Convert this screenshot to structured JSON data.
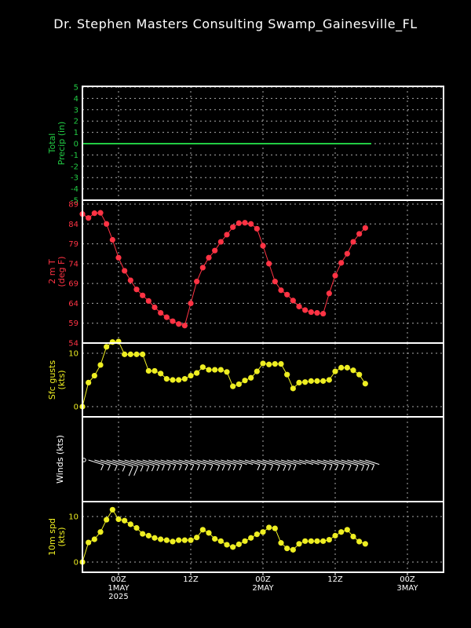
{
  "title": "Dr. Stephen Masters Consulting  Swamp_Gainesville_FL",
  "colors": {
    "precip": "#22cc44",
    "temp": "#ff3344",
    "gust": "#eeee22",
    "wind": "#ffffff",
    "spd": "#eeee22"
  },
  "x_axis": {
    "tick_labels": [
      {
        "t": 6,
        "lines": [
          "00Z",
          "1MAY",
          "2025"
        ]
      },
      {
        "t": 18,
        "lines": [
          "12Z"
        ]
      },
      {
        "t": 30,
        "lines": [
          "00Z",
          "2MAY"
        ]
      },
      {
        "t": 42,
        "lines": [
          "12Z"
        ]
      },
      {
        "t": 54,
        "lines": [
          "00Z",
          "3MAY"
        ]
      }
    ],
    "range": [
      0,
      60
    ]
  },
  "chart_data": [
    {
      "type": "line",
      "id": "precip",
      "ylabel": [
        "Total",
        "Precip (in)"
      ],
      "ylim": [
        -5,
        5
      ],
      "yticks": [
        "5",
        "4",
        "3",
        "2",
        "1",
        "0",
        "-1",
        "-2",
        "-3",
        "-4",
        "-5"
      ],
      "grid": true,
      "x": [
        0,
        48
      ],
      "values": [
        0,
        0
      ]
    },
    {
      "type": "line",
      "id": "temp",
      "ylabel": [
        "2 m T",
        "(deg F)"
      ],
      "ylim": [
        54,
        89
      ],
      "yticks": [
        "89",
        "84",
        "79",
        "74",
        "69",
        "64",
        "59",
        "54"
      ],
      "grid": true,
      "x": [
        0,
        1,
        2,
        3,
        4,
        5,
        6,
        7,
        8,
        9,
        10,
        11,
        12,
        13,
        14,
        15,
        16,
        17,
        18,
        19,
        20,
        21,
        22,
        23,
        24,
        25,
        26,
        27,
        28,
        29,
        30,
        31,
        32,
        33,
        34,
        35,
        36,
        37,
        38,
        39,
        40,
        41,
        42,
        43,
        44,
        45,
        46,
        47
      ],
      "values": [
        86.5,
        85.5,
        86.7,
        86.8,
        84,
        80,
        75.5,
        72.2,
        69.8,
        67.5,
        66,
        64.6,
        63,
        61.6,
        60.5,
        59.5,
        58.8,
        58.4,
        64,
        69.5,
        73,
        75.5,
        77.3,
        79.5,
        81.3,
        83.2,
        84.2,
        84.3,
        84,
        82.8,
        78.5,
        74,
        69.5,
        67.3,
        66.2,
        64.7,
        63.2,
        62.3,
        61.8,
        61.6,
        61.4,
        66.5,
        71,
        74.2,
        76.5,
        79.5,
        81.5,
        83
      ]
    },
    {
      "type": "line",
      "id": "gust",
      "ylabel": [
        "Sfc gusts",
        "(kts)"
      ],
      "ylim": [
        0,
        12
      ],
      "yticks": [
        "10",
        "0"
      ],
      "grid": true,
      "x": [
        0,
        1,
        2,
        3,
        4,
        5,
        6,
        7,
        8,
        9,
        10,
        11,
        12,
        13,
        14,
        15,
        16,
        17,
        18,
        19,
        20,
        21,
        22,
        23,
        24,
        25,
        26,
        27,
        28,
        29,
        30,
        31,
        32,
        33,
        34,
        35,
        36,
        37,
        38,
        39,
        40,
        41,
        42,
        43,
        44,
        45,
        46,
        47
      ],
      "values": [
        0,
        4.5,
        5.8,
        7.8,
        11.2,
        12.1,
        12.2,
        9.8,
        9.8,
        9.8,
        9.8,
        6.7,
        6.7,
        6.2,
        5.2,
        5,
        5,
        5.2,
        5.8,
        6.3,
        7.4,
        6.9,
        6.9,
        6.9,
        6.5,
        3.8,
        4.2,
        4.9,
        5.4,
        6.6,
        8.1,
        7.9,
        8,
        8,
        6,
        3.4,
        4.5,
        4.6,
        4.8,
        4.8,
        4.8,
        5,
        6.6,
        7.3,
        7.3,
        6.8,
        6,
        4.3
      ]
    },
    {
      "type": "barbs",
      "id": "wind",
      "ylabel": [
        "Winds (kts)"
      ],
      "yticks": [],
      "grid": true,
      "x": [
        1,
        2,
        3,
        4,
        5,
        6,
        7,
        8,
        9,
        10,
        11,
        12,
        13,
        14,
        15,
        16,
        17,
        18,
        19,
        20,
        21,
        22,
        23,
        24,
        25,
        26,
        27,
        28,
        29,
        30,
        31,
        32,
        33,
        34,
        35,
        36,
        37,
        38,
        39,
        40,
        41,
        42,
        43,
        44,
        45,
        46,
        47
      ],
      "speed": [
        5,
        6,
        7,
        9,
        11,
        10,
        9,
        9,
        8,
        7,
        6,
        6,
        5,
        5,
        5,
        5,
        5,
        5,
        6,
        7,
        6,
        6,
        5,
        5,
        4,
        4,
        5,
        5,
        6,
        7,
        7,
        6,
        5,
        4,
        3,
        4,
        4,
        5,
        5,
        5,
        5,
        6,
        7,
        7,
        6,
        5,
        4
      ]
    },
    {
      "type": "line",
      "id": "spd",
      "ylabel": [
        "10m spd",
        "(kts)"
      ],
      "ylim": [
        0,
        12
      ],
      "yticks": [
        "10",
        "0"
      ],
      "grid": true,
      "x": [
        0,
        1,
        2,
        3,
        4,
        5,
        6,
        7,
        8,
        9,
        10,
        11,
        12,
        13,
        14,
        15,
        16,
        17,
        18,
        19,
        20,
        21,
        22,
        23,
        24,
        25,
        26,
        27,
        28,
        29,
        30,
        31,
        32,
        33,
        34,
        35,
        36,
        37,
        38,
        39,
        40,
        41,
        42,
        43,
        44,
        45,
        46,
        47
      ],
      "values": [
        0,
        4.3,
        5,
        6.6,
        9.3,
        11.5,
        9.4,
        9.1,
        8.3,
        7.5,
        6.2,
        5.8,
        5.3,
        5,
        4.8,
        4.5,
        4.8,
        4.8,
        4.8,
        5.4,
        7.1,
        6.4,
        5.1,
        4.6,
        3.8,
        3.3,
        3.9,
        4.6,
        5.3,
        6.1,
        6.6,
        7.6,
        7.4,
        4.2,
        3,
        2.7,
        4,
        4.6,
        4.6,
        4.6,
        4.6,
        4.9,
        5.8,
        6.6,
        7.1,
        5.6,
        4.5,
        4
      ]
    }
  ]
}
